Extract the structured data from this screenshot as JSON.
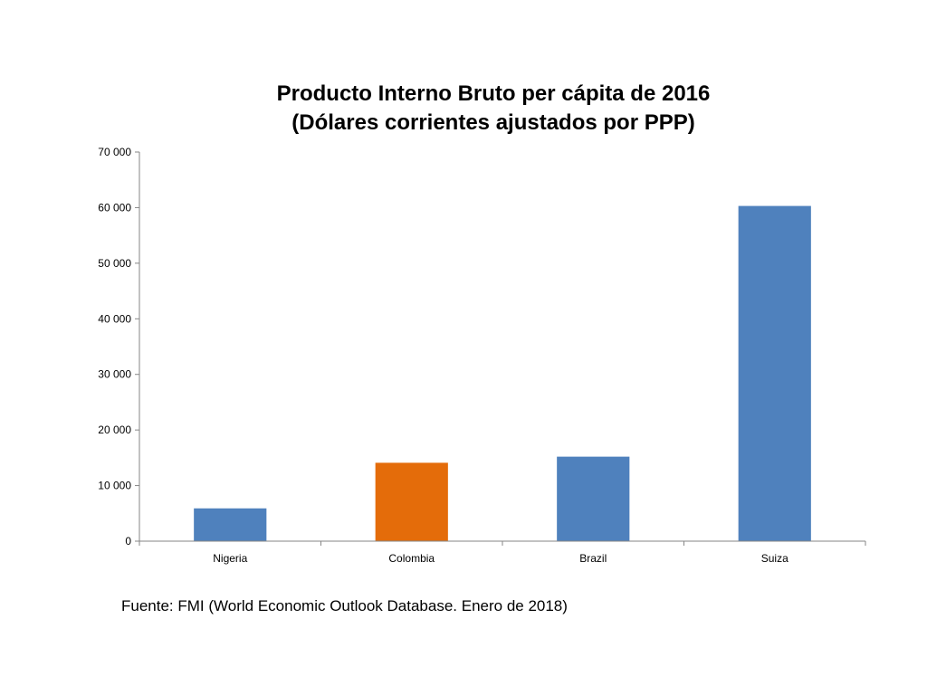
{
  "chart_data": {
    "type": "bar",
    "title": [
      "Producto Interno Bruto per cápita de 2016",
      "(Dólares corrientes ajustados por PPP)"
    ],
    "categories": [
      "Nigeria",
      "Colombia",
      "Brazil",
      "Suiza"
    ],
    "values": [
      5900,
      14100,
      15200,
      60300
    ],
    "bar_colors": [
      "#4f81bd",
      "#e46c0a",
      "#4f81bd",
      "#4f81bd"
    ],
    "ylim": [
      0,
      70000
    ],
    "yticks": [
      0,
      10000,
      20000,
      30000,
      40000,
      50000,
      60000,
      70000
    ],
    "ytick_labels": [
      "0",
      "10 000",
      "20 000",
      "30 000",
      "40 000",
      "50 000",
      "60 000",
      "70 000"
    ],
    "xlabel": "",
    "ylabel": "",
    "grid": false,
    "legend": "none"
  },
  "source": "Fuente: FMI (World Economic Outlook Database. Enero de 2018)"
}
